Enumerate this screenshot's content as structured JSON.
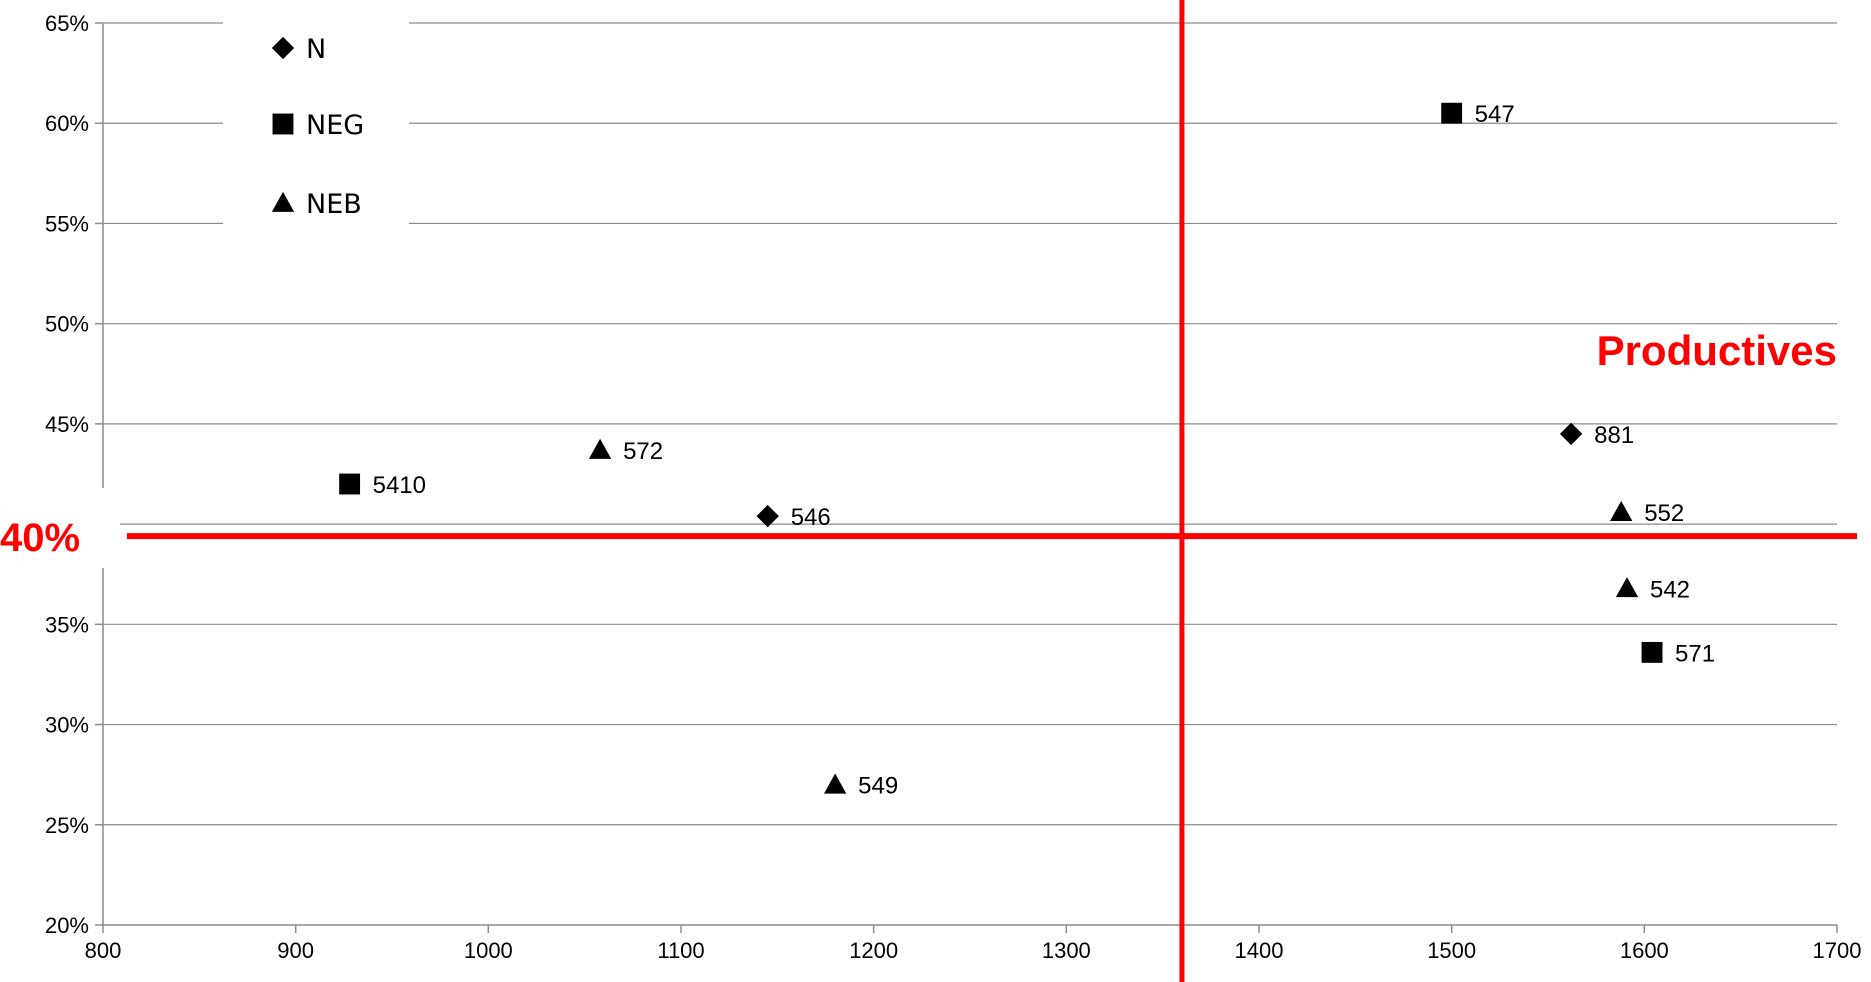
{
  "chart_data": {
    "type": "scatter",
    "title": "",
    "xlabel": "",
    "ylabel": "",
    "xlim": [
      800,
      1700
    ],
    "ylim": [
      0.2,
      0.65
    ],
    "x_ticks": [
      800,
      900,
      1000,
      1100,
      1200,
      1300,
      1400,
      1500,
      1600,
      1700
    ],
    "x_tick_labels": [
      "800",
      "900",
      "1000",
      "1100",
      "1200",
      "1300",
      "1400",
      "1500",
      "1600",
      "1700"
    ],
    "y_ticks": [
      0.2,
      0.25,
      0.3,
      0.35,
      0.4,
      0.45,
      0.5,
      0.55,
      0.6,
      0.65
    ],
    "y_tick_labels": [
      "20%",
      "25%",
      "30%",
      "35%",
      "40%",
      "45%",
      "50%",
      "55%",
      "60%",
      "65%"
    ],
    "grid": "horizontal",
    "legend": {
      "position": "top-left",
      "items": [
        {
          "label": "N",
          "marker": "diamond"
        },
        {
          "label": "NEG",
          "marker": "square"
        },
        {
          "label": "NEB",
          "marker": "triangle"
        }
      ]
    },
    "series": [
      {
        "name": "N",
        "marker": "diamond",
        "points": [
          {
            "x": 1145,
            "y": 0.404,
            "label": "546"
          },
          {
            "x": 1562,
            "y": 0.445,
            "label": "881"
          }
        ]
      },
      {
        "name": "NEG",
        "marker": "square",
        "points": [
          {
            "x": 928,
            "y": 0.42,
            "label": "5410"
          },
          {
            "x": 1500,
            "y": 0.605,
            "label": "547"
          },
          {
            "x": 1604,
            "y": 0.336,
            "label": "571"
          }
        ]
      },
      {
        "name": "NEB",
        "marker": "triangle",
        "points": [
          {
            "x": 1058,
            "y": 0.437,
            "label": "572"
          },
          {
            "x": 1180,
            "y": 0.27,
            "label": "549"
          },
          {
            "x": 1588,
            "y": 0.406,
            "label": "552"
          },
          {
            "x": 1591,
            "y": 0.368,
            "label": "542"
          }
        ]
      }
    ],
    "reference_lines": {
      "vertical_x": 1360,
      "horizontal_y": 0.4,
      "color": "#ff0000"
    },
    "annotations": [
      {
        "text": "Productives",
        "color": "#ff0000",
        "placement": "upper-right"
      },
      {
        "text": "40%",
        "color": "#ff0000",
        "placement": "left-of-horizontal-reference"
      }
    ]
  }
}
